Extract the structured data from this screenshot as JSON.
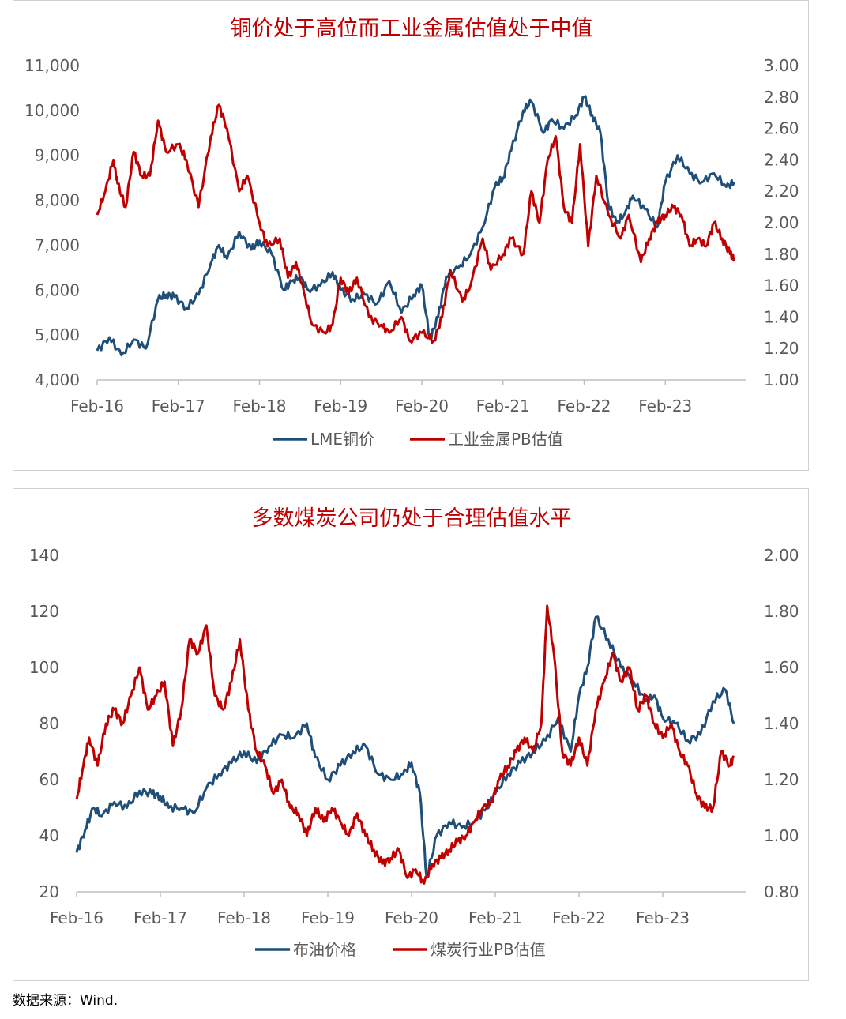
{
  "source": "数据来源：Wind.",
  "colors": {
    "blue": "#1f4e79",
    "red": "#c00000",
    "axis": "#bfbfbf",
    "text": "#595959",
    "title": "#c00000"
  },
  "chart_data": [
    {
      "type": "line",
      "title": "铜价处于高位而工业金属估值处于中值",
      "x_ticks": [
        "Feb-16",
        "Feb-17",
        "Feb-18",
        "Feb-19",
        "Feb-20",
        "Feb-21",
        "Feb-22",
        "Feb-23"
      ],
      "y_left": {
        "min": 4000,
        "max": 11000,
        "ticks": [
          "4,000",
          "5,000",
          "6,000",
          "7,000",
          "8,000",
          "9,000",
          "10,000",
          "11,000"
        ]
      },
      "y_right": {
        "min": 1.0,
        "max": 3.0,
        "ticks": [
          "1.00",
          "1.20",
          "1.40",
          "1.60",
          "1.80",
          "2.00",
          "2.20",
          "2.40",
          "2.60",
          "2.80",
          "3.00"
        ]
      },
      "legend_position": "bottom",
      "series": [
        {
          "name": "LME铜价",
          "axis": "left",
          "color": "#1f4e79",
          "x": [
            2016.0,
            2016.15,
            2016.3,
            2016.45,
            2016.6,
            2016.75,
            2016.85,
            2016.95,
            2017.1,
            2017.25,
            2017.4,
            2017.5,
            2017.6,
            2017.75,
            2017.9,
            2018.0,
            2018.15,
            2018.3,
            2018.4,
            2018.5,
            2018.6,
            2018.75,
            2018.9,
            2019.0,
            2019.15,
            2019.3,
            2019.45,
            2019.6,
            2019.75,
            2019.9,
            2020.0,
            2020.1,
            2020.2,
            2020.3,
            2020.45,
            2020.6,
            2020.75,
            2020.9,
            2021.0,
            2021.1,
            2021.25,
            2021.35,
            2021.5,
            2021.6,
            2021.75,
            2021.9,
            2022.0,
            2022.1,
            2022.2,
            2022.3,
            2022.4,
            2022.5,
            2022.6,
            2022.75,
            2022.9,
            2023.0,
            2023.15,
            2023.3,
            2023.45,
            2023.6,
            2023.75,
            2023.85
          ],
          "values": [
            4650,
            4950,
            4550,
            4900,
            4700,
            5800,
            5900,
            5850,
            5600,
            5900,
            6600,
            7000,
            6700,
            7300,
            6900,
            7100,
            6800,
            6000,
            6200,
            6300,
            6000,
            6100,
            6400,
            6000,
            5800,
            5900,
            5700,
            6200,
            5500,
            5900,
            6100,
            4900,
            5400,
            6300,
            6500,
            6800,
            7400,
            8300,
            8500,
            9100,
            10000,
            10200,
            9500,
            9800,
            9600,
            9900,
            10300,
            9900,
            9500,
            7900,
            7500,
            7700,
            8100,
            7800,
            7400,
            8400,
            9000,
            8600,
            8400,
            8600,
            8300,
            8400
          ]
        },
        {
          "name": "工业金属PB估值",
          "axis": "right",
          "color": "#c00000",
          "x": [
            2016.0,
            2016.1,
            2016.2,
            2016.25,
            2016.35,
            2016.45,
            2016.55,
            2016.65,
            2016.75,
            2016.85,
            2017.0,
            2017.1,
            2017.25,
            2017.4,
            2017.5,
            2017.6,
            2017.75,
            2017.85,
            2018.0,
            2018.1,
            2018.25,
            2018.35,
            2018.45,
            2018.55,
            2018.65,
            2018.8,
            2018.9,
            2019.0,
            2019.1,
            2019.2,
            2019.35,
            2019.5,
            2019.6,
            2019.75,
            2019.85,
            2020.0,
            2020.15,
            2020.25,
            2020.35,
            2020.5,
            2020.6,
            2020.75,
            2020.85,
            2021.0,
            2021.1,
            2021.25,
            2021.35,
            2021.45,
            2021.55,
            2021.65,
            2021.75,
            2021.85,
            2021.95,
            2022.05,
            2022.15,
            2022.3,
            2022.45,
            2022.55,
            2022.7,
            2022.8,
            2022.9,
            2023.0,
            2023.1,
            2023.2,
            2023.3,
            2023.4,
            2023.5,
            2023.6,
            2023.7,
            2023.8,
            2023.85
          ],
          "values": [
            2.05,
            2.2,
            2.4,
            2.25,
            2.1,
            2.45,
            2.3,
            2.3,
            2.65,
            2.45,
            2.5,
            2.4,
            2.1,
            2.55,
            2.75,
            2.6,
            2.2,
            2.3,
            2.0,
            1.85,
            1.9,
            1.65,
            1.75,
            1.55,
            1.35,
            1.3,
            1.35,
            1.65,
            1.55,
            1.65,
            1.4,
            1.35,
            1.3,
            1.4,
            1.25,
            1.3,
            1.25,
            1.4,
            1.7,
            1.5,
            1.6,
            1.9,
            1.7,
            1.8,
            1.9,
            1.8,
            2.2,
            2.0,
            2.4,
            2.55,
            2.1,
            2.0,
            2.5,
            1.85,
            2.3,
            2.05,
            1.9,
            2.05,
            1.75,
            1.9,
            2.0,
            2.05,
            2.1,
            2.05,
            1.85,
            1.9,
            1.85,
            2.0,
            1.9,
            1.8,
            1.78
          ]
        }
      ]
    },
    {
      "type": "line",
      "title": "多数煤炭公司仍处于合理估值水平",
      "x_ticks": [
        "Feb-16",
        "Feb-17",
        "Feb-18",
        "Feb-19",
        "Feb-20",
        "Feb-21",
        "Feb-22",
        "Feb-23"
      ],
      "y_left": {
        "min": 20,
        "max": 140,
        "ticks": [
          "20",
          "40",
          "60",
          "80",
          "100",
          "120",
          "140"
        ]
      },
      "y_right": {
        "min": 0.8,
        "max": 2.0,
        "ticks": [
          "0.80",
          "1.00",
          "1.20",
          "1.40",
          "1.60",
          "1.80",
          "2.00"
        ]
      },
      "legend_position": "bottom",
      "series": [
        {
          "name": "布油价格",
          "axis": "left",
          "color": "#1f4e79",
          "x": [
            2016.0,
            2016.1,
            2016.2,
            2016.3,
            2016.45,
            2016.6,
            2016.75,
            2016.9,
            2017.0,
            2017.1,
            2017.25,
            2017.4,
            2017.55,
            2017.7,
            2017.85,
            2018.0,
            2018.15,
            2018.3,
            2018.45,
            2018.6,
            2018.75,
            2018.85,
            2019.0,
            2019.15,
            2019.3,
            2019.45,
            2019.6,
            2019.75,
            2019.9,
            2020.0,
            2020.1,
            2020.18,
            2020.3,
            2020.45,
            2020.6,
            2020.75,
            2020.9,
            2021.0,
            2021.15,
            2021.3,
            2021.45,
            2021.6,
            2021.75,
            2021.9,
            2022.0,
            2022.1,
            2022.2,
            2022.35,
            2022.5,
            2022.65,
            2022.8,
            2022.9,
            2023.0,
            2023.15,
            2023.3,
            2023.45,
            2023.6,
            2023.75,
            2023.85
          ],
          "values": [
            34,
            42,
            50,
            47,
            52,
            50,
            56,
            55,
            54,
            50,
            50,
            48,
            57,
            62,
            66,
            70,
            66,
            72,
            76,
            75,
            80,
            68,
            60,
            65,
            70,
            72,
            62,
            60,
            62,
            66,
            55,
            25,
            40,
            45,
            43,
            45,
            50,
            55,
            62,
            66,
            70,
            74,
            82,
            70,
            90,
            100,
            118,
            110,
            100,
            95,
            88,
            90,
            82,
            80,
            74,
            76,
            88,
            92,
            80
          ]
        },
        {
          "name": "煤炭行业PB估值",
          "axis": "right",
          "color": "#c00000",
          "x": [
            2016.0,
            2016.08,
            2016.15,
            2016.25,
            2016.35,
            2016.45,
            2016.55,
            2016.65,
            2016.75,
            2016.85,
            2016.95,
            2017.05,
            2017.15,
            2017.25,
            2017.35,
            2017.45,
            2017.55,
            2017.65,
            2017.75,
            2017.85,
            2017.95,
            2018.05,
            2018.15,
            2018.25,
            2018.35,
            2018.45,
            2018.55,
            2018.65,
            2018.75,
            2018.85,
            2018.95,
            2019.05,
            2019.15,
            2019.25,
            2019.35,
            2019.45,
            2019.55,
            2019.65,
            2019.75,
            2019.85,
            2019.95,
            2020.05,
            2020.15,
            2020.25,
            2020.35,
            2020.45,
            2020.55,
            2020.65,
            2020.75,
            2020.85,
            2020.95,
            2021.05,
            2021.15,
            2021.25,
            2021.35,
            2021.45,
            2021.55,
            2021.62,
            2021.7,
            2021.8,
            2021.9,
            2022.0,
            2022.1,
            2022.2,
            2022.3,
            2022.4,
            2022.5,
            2022.6,
            2022.7,
            2022.8,
            2022.9,
            2023.0,
            2023.1,
            2023.2,
            2023.3,
            2023.4,
            2023.5,
            2023.6,
            2023.7,
            2023.8,
            2023.85
          ],
          "values": [
            1.13,
            1.25,
            1.35,
            1.25,
            1.4,
            1.45,
            1.4,
            1.5,
            1.6,
            1.45,
            1.5,
            1.55,
            1.32,
            1.45,
            1.7,
            1.65,
            1.75,
            1.5,
            1.45,
            1.55,
            1.7,
            1.45,
            1.3,
            1.25,
            1.15,
            1.2,
            1.1,
            1.08,
            1.0,
            1.1,
            1.05,
            1.1,
            1.05,
            1.0,
            1.08,
            1.0,
            0.95,
            0.9,
            0.92,
            0.95,
            0.85,
            0.88,
            0.83,
            0.9,
            0.92,
            0.95,
            0.98,
            1.0,
            1.05,
            1.1,
            1.12,
            1.2,
            1.25,
            1.3,
            1.35,
            1.3,
            1.4,
            1.82,
            1.65,
            1.3,
            1.25,
            1.35,
            1.25,
            1.45,
            1.55,
            1.65,
            1.55,
            1.6,
            1.45,
            1.5,
            1.4,
            1.35,
            1.4,
            1.3,
            1.25,
            1.15,
            1.1,
            1.1,
            1.3,
            1.25,
            1.28
          ]
        }
      ]
    }
  ]
}
